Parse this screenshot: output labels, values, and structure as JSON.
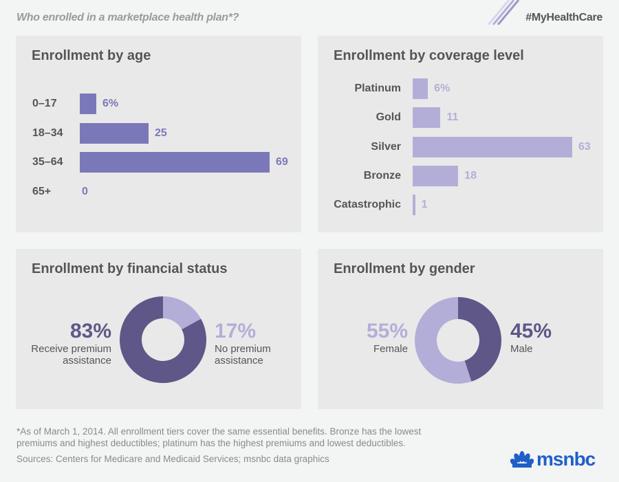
{
  "header": {
    "title": "Who enrolled in a marketplace health plan*?",
    "hashtag": "#MyHealthCare"
  },
  "colors": {
    "age_bar": "#7b78b9",
    "coverage_bar": "#b3aed8",
    "dark": "#5e5787",
    "light": "#b3aed8",
    "panel": "#e9e9e9",
    "background": "#f3f4f4",
    "brand": "#1f5fc8"
  },
  "chart_data": [
    {
      "type": "bar",
      "orientation": "horizontal",
      "title": "Enrollment by age",
      "categories": [
        "0–17",
        "18–34",
        "35–64",
        "65+"
      ],
      "values": [
        6,
        25,
        69,
        0
      ],
      "value_labels": [
        "6%",
        "25",
        "69",
        "0"
      ],
      "unit": "%"
    },
    {
      "type": "bar",
      "orientation": "horizontal",
      "title": "Enrollment by coverage level",
      "categories": [
        "Platinum",
        "Gold",
        "Silver",
        "Bronze",
        "Catastrophic"
      ],
      "values": [
        6,
        11,
        63,
        18,
        1
      ],
      "value_labels": [
        "6%",
        "11",
        "63",
        "18",
        "1"
      ],
      "unit": "%"
    },
    {
      "type": "pie",
      "donut": true,
      "title": "Enrollment by financial status",
      "slices": [
        {
          "label": "No premium assistance",
          "value": 17,
          "display": "17%"
        },
        {
          "label": "Receive premium assistance",
          "value": 83,
          "display": "83%"
        }
      ]
    },
    {
      "type": "pie",
      "donut": true,
      "title": "Enrollment by gender",
      "slices": [
        {
          "label": "Male",
          "value": 45,
          "display": "45%"
        },
        {
          "label": "Female",
          "value": 55,
          "display": "55%"
        }
      ]
    }
  ],
  "labels": {
    "fin_left_l1": "Receive premium",
    "fin_left_l2": "assistance",
    "fin_right_l1": "No premium",
    "fin_right_l2": "assistance"
  },
  "footer": {
    "note_l1": "*As of March 1, 2014. All enrollment tiers cover the same essential benefits. Bronze has the lowest",
    "note_l2": "premiums and highest deductibles; platinum has the highest premiums and lowest deductibles.",
    "sources": "Sources: Centers for Medicare and Medicaid Services; msnbc data graphics",
    "logo": "msnbc"
  }
}
